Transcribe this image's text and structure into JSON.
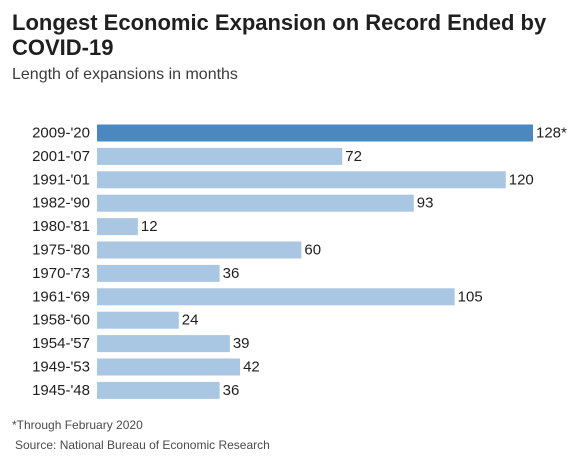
{
  "chart_data": {
    "type": "bar",
    "orientation": "horizontal",
    "title": "Longest Economic Expansion on Record Ended by COVID-19",
    "subtitle": "Length of expansions in months",
    "categories": [
      "2009-'20",
      "2001-'07",
      "1991-'01",
      "1982-'90",
      "1980-'81",
      "1975-'80",
      "1970-'73",
      "1961-'69",
      "1958-'60",
      "1954-'57",
      "1949-'53",
      "1945-'48"
    ],
    "values": [
      128,
      72,
      120,
      93,
      12,
      60,
      36,
      105,
      24,
      39,
      42,
      36
    ],
    "value_labels": [
      "128*",
      "72",
      "120",
      "93",
      "12",
      "60",
      "36",
      "105",
      "24",
      "39",
      "42",
      "36"
    ],
    "xlim": [
      0,
      128
    ],
    "highlight_index": 0,
    "colors": {
      "bar": "#a9c6e2",
      "highlight": "#4a88bf"
    },
    "grid": false,
    "footnote": "*Through February 2020",
    "source": "Source: National Bureau of Economic Research"
  }
}
